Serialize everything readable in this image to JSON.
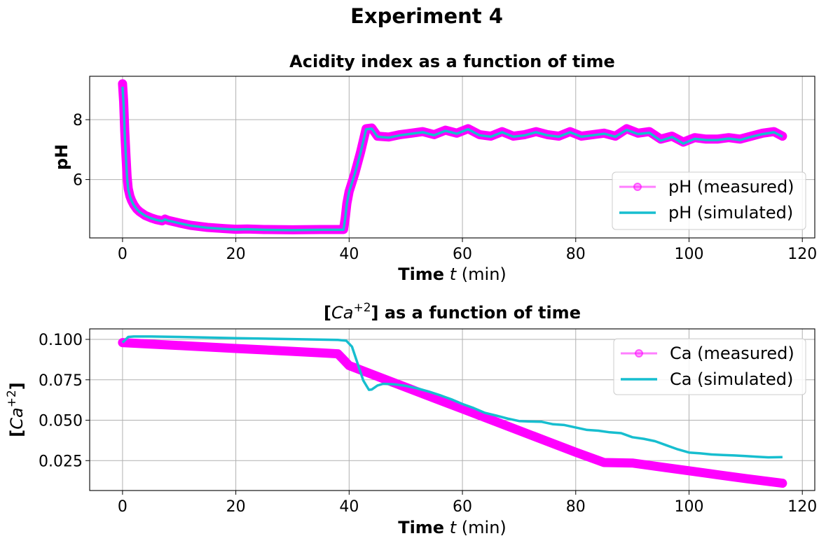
{
  "figure": {
    "suptitle": "Experiment 4"
  },
  "chart_data": [
    {
      "type": "line",
      "title": "Acidity index as a function of time",
      "xlabel": {
        "bold": "Time",
        "var": "t",
        "unit": "(min)"
      },
      "ylabel": "pH",
      "xlim": [
        -5.8,
        122.2
      ],
      "ylim": [
        4.05,
        9.45
      ],
      "xticks": [
        0,
        20,
        40,
        60,
        80,
        100,
        120
      ],
      "yticks": [
        6,
        8
      ],
      "grid": true,
      "legend_position": "lower-right",
      "series": [
        {
          "name": "pH (measured)",
          "style": "markers-line",
          "color": "#ff00ff",
          "x": [
            0,
            0.2,
            0.4,
            0.6,
            0.8,
            1.0,
            1.3,
            1.6,
            2,
            2.5,
            3,
            4,
            5,
            6,
            7,
            7.5,
            8,
            10,
            12,
            15,
            18,
            20,
            22,
            25,
            30,
            35,
            39,
            39.3,
            39.6,
            40,
            41,
            42,
            43,
            44,
            45,
            47,
            49,
            51,
            53,
            55,
            57,
            59,
            61,
            63,
            65,
            67,
            69,
            71,
            73,
            75,
            77,
            79,
            81,
            83,
            85,
            87,
            89,
            91,
            93,
            95,
            97,
            99,
            101,
            103,
            105,
            107,
            109,
            111,
            113,
            115,
            116.5
          ],
          "values": [
            9.2,
            8.6,
            7.6,
            6.8,
            6.1,
            5.7,
            5.45,
            5.3,
            5.15,
            5.02,
            4.93,
            4.8,
            4.72,
            4.66,
            4.62,
            4.68,
            4.64,
            4.55,
            4.47,
            4.4,
            4.36,
            4.34,
            4.35,
            4.33,
            4.32,
            4.33,
            4.33,
            4.7,
            5.2,
            5.6,
            6.2,
            6.9,
            7.7,
            7.72,
            7.45,
            7.42,
            7.5,
            7.55,
            7.6,
            7.5,
            7.65,
            7.55,
            7.7,
            7.5,
            7.45,
            7.6,
            7.45,
            7.5,
            7.6,
            7.5,
            7.45,
            7.6,
            7.45,
            7.5,
            7.55,
            7.45,
            7.7,
            7.55,
            7.6,
            7.35,
            7.45,
            7.25,
            7.4,
            7.35,
            7.35,
            7.4,
            7.35,
            7.45,
            7.55,
            7.6,
            7.45
          ]
        },
        {
          "name": "pH (simulated)",
          "style": "line",
          "color": "#17becf",
          "x": [
            0,
            0.2,
            0.4,
            0.6,
            0.8,
            1.0,
            1.3,
            1.6,
            2,
            2.5,
            3,
            4,
            5,
            6,
            7,
            7.5,
            8,
            10,
            12,
            15,
            18,
            20,
            22,
            25,
            30,
            35,
            39,
            39.3,
            39.6,
            40,
            41,
            42,
            43,
            44,
            45,
            47,
            49,
            51,
            53,
            55,
            57,
            59,
            61,
            63,
            65,
            67,
            69,
            71,
            73,
            75,
            77,
            79,
            81,
            83,
            85,
            87,
            89,
            91,
            93,
            95,
            97,
            99,
            101,
            103,
            105,
            107,
            109,
            111,
            113,
            115,
            116.5
          ],
          "values": [
            9.1,
            8.5,
            7.5,
            6.7,
            6.05,
            5.68,
            5.44,
            5.29,
            5.14,
            5.01,
            4.92,
            4.79,
            4.71,
            4.65,
            4.61,
            4.67,
            4.63,
            4.54,
            4.46,
            4.39,
            4.35,
            4.33,
            4.34,
            4.32,
            4.31,
            4.32,
            4.32,
            4.69,
            5.19,
            5.59,
            6.19,
            6.88,
            7.68,
            7.7,
            7.43,
            7.4,
            7.48,
            7.53,
            7.58,
            7.48,
            7.63,
            7.53,
            7.68,
            7.48,
            7.43,
            7.58,
            7.43,
            7.48,
            7.58,
            7.48,
            7.43,
            7.58,
            7.43,
            7.48,
            7.53,
            7.43,
            7.66,
            7.52,
            7.56,
            7.3,
            7.42,
            7.2,
            7.36,
            7.32,
            7.32,
            7.37,
            7.32,
            7.43,
            7.52,
            7.58,
            7.43
          ]
        }
      ]
    },
    {
      "type": "line",
      "title": "as a function of time",
      "title_math": {
        "open": "[",
        "base": "Ca",
        "sup": "+2",
        "close": "]"
      },
      "xlabel": {
        "bold": "Time",
        "var": "t",
        "unit": "(min)"
      },
      "ylabel_math": {
        "open": "[",
        "base": "Ca",
        "sup": "+2",
        "close": "]"
      },
      "xlim": [
        -5.8,
        122.2
      ],
      "ylim": [
        0.0065,
        0.1065
      ],
      "xticks": [
        0,
        20,
        40,
        60,
        80,
        100,
        120
      ],
      "yticks": [
        0.025,
        0.05,
        0.075,
        0.1
      ],
      "ytick_labels": [
        "0.025",
        "0.050",
        "0.075",
        "0.100"
      ],
      "grid": true,
      "legend_position": "upper-right",
      "series": [
        {
          "name": "Ca (measured)",
          "style": "markers-line",
          "color": "#ff00ff",
          "x": [
            0,
            5,
            10,
            15,
            20,
            25,
            30,
            35,
            38,
            39,
            40,
            45,
            50,
            55,
            60,
            65,
            70,
            75,
            80,
            85,
            90,
            95,
            100,
            105,
            110,
            116.5
          ],
          "values": [
            0.098,
            0.0971,
            0.0962,
            0.0953,
            0.0944,
            0.0935,
            0.0926,
            0.0917,
            0.0911,
            0.0875,
            0.0838,
            0.0771,
            0.0704,
            0.0637,
            0.057,
            0.0503,
            0.0436,
            0.0369,
            0.0302,
            0.0238,
            0.0235,
            0.0211,
            0.0187,
            0.0163,
            0.0139,
            0.011
          ]
        },
        {
          "name": "Ca (simulated)",
          "style": "line",
          "color": "#17becf",
          "x": [
            0,
            1,
            2,
            5,
            10,
            20,
            30,
            38,
            39.5,
            40.5,
            41.5,
            42.5,
            43.5,
            44,
            45,
            46,
            48,
            50,
            52,
            54,
            56,
            58,
            60,
            62,
            64,
            66,
            68,
            70,
            72,
            74,
            76,
            78,
            80,
            82,
            84,
            86,
            88,
            90,
            92,
            94,
            96,
            98,
            100,
            102,
            104,
            106,
            108,
            110,
            112,
            114,
            116.5
          ],
          "values": [
            0.098,
            0.1015,
            0.1018,
            0.1018,
            0.1015,
            0.1008,
            0.1002,
            0.0997,
            0.0992,
            0.0955,
            0.085,
            0.0745,
            0.0688,
            0.069,
            0.0715,
            0.0725,
            0.0722,
            0.0712,
            0.0697,
            0.0678,
            0.0655,
            0.063,
            0.06,
            0.0575,
            0.0545,
            0.0528,
            0.051,
            0.0495,
            0.0492,
            0.049,
            0.0475,
            0.047,
            0.0455,
            0.044,
            0.0435,
            0.0425,
            0.042,
            0.0395,
            0.0385,
            0.037,
            0.0345,
            0.032,
            0.03,
            0.0295,
            0.0288,
            0.0285,
            0.0282,
            0.0278,
            0.0274,
            0.027,
            0.0272
          ]
        }
      ]
    }
  ]
}
